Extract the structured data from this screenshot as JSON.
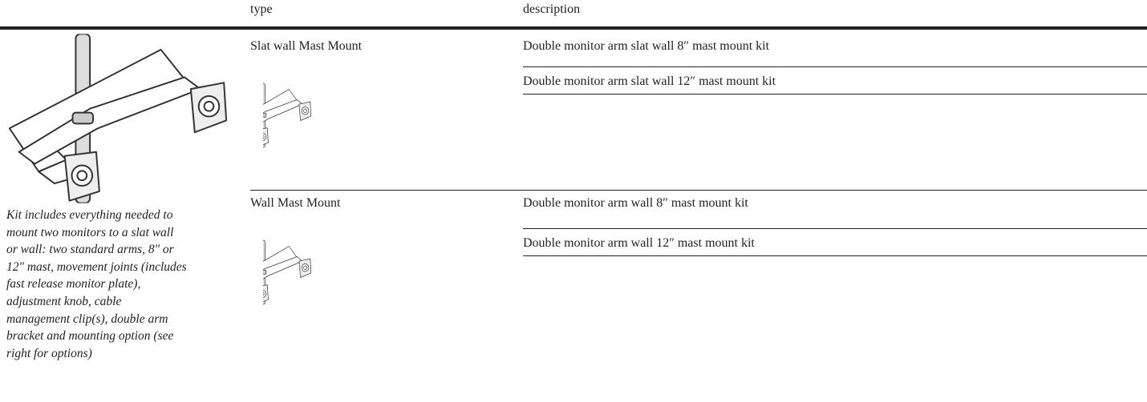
{
  "header": {
    "columns": [
      "type",
      "description"
    ]
  },
  "caption": {
    "lines": [
      "Kit includes everything needed to",
      "mount two monitors to a slat wall",
      "or wall: two standard arms, 8″ or",
      "12″ mast, movement joints (includes",
      "fast release monitor plate),",
      "adjustment knob, cable",
      "management clip(s), double arm",
      "bracket and mounting option (see",
      "right for options)"
    ]
  },
  "groups": [
    {
      "type": "Slat wall Mast Mount",
      "descriptions": [
        "Double monitor arm slat wall 8″ mast mount kit",
        "Double monitor arm slat wall 12″ mast mount kit"
      ]
    },
    {
      "type": "Wall Mast Mount",
      "descriptions": [
        "Double monitor arm wall 8″ mast mount kit",
        "Double monitor arm wall 12″ mast mount kit"
      ]
    }
  ]
}
